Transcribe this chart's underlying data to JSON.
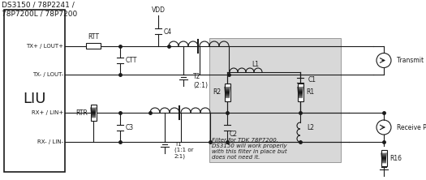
{
  "title": "DS3150 / 78P2241 /\n78P7200L / 78P7200",
  "title_fontsize": 6.5,
  "fig_bg": "#ffffff",
  "liu_label": "LIU",
  "liu_fontsize": 13,
  "filter_text": "Filter for TDK 78P7200.\nDS3150 will work properly\nwith this filter in place but\ndoes not need it.",
  "filter_fontsize": 5.0,
  "labels": {
    "tx_plus": "TX+ / LOUT+",
    "tx_minus": "TX- / LOUT-",
    "rx_plus": "RX+ / LIN+",
    "rx_minus": "RX- / LIN-",
    "transmit": "Transmit Port",
    "receive": "Receive Port",
    "rtt": "RTT",
    "ctt": "CTT",
    "vdd": "VDD",
    "c4": "C4",
    "t2": "T2\n(2:1)",
    "rtr": "RTR",
    "c3": "C3",
    "t1": "T1\n(1:1 or\n2:1)",
    "l1": "L1",
    "r2": "R2",
    "r1": "R1",
    "c1": "C1",
    "c2": "C2",
    "l2": "L2",
    "r16": "R16"
  },
  "lc": "#1a1a1a",
  "lw": 0.8
}
